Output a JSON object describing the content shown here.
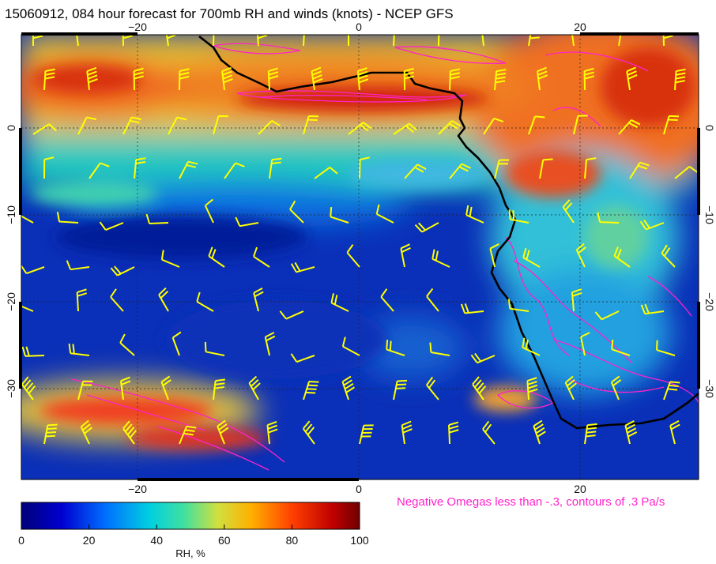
{
  "title": "15060912, 084 hour forecast for 700mb RH and winds (knots) - NCEP GFS",
  "map": {
    "lon_ticks": [
      "−20",
      "0",
      "20"
    ],
    "lat_ticks": [
      "0",
      "−10",
      "−20",
      "−30"
    ],
    "lon_range": [
      -30,
      30
    ],
    "lat_range": [
      -40,
      10
    ],
    "grid": true,
    "coastline_color": "#000000",
    "wind_barb_color": "#ffff00",
    "omega_contour_color": "#ff22cc"
  },
  "note": "Negative Omegas less than -.3, contours of .3 Pa/s",
  "colorbar": {
    "ticks": [
      "0",
      "20",
      "40",
      "60",
      "80",
      "100"
    ],
    "label": "RH, %",
    "colors": [
      "#00007a",
      "#0000d0",
      "#0070ff",
      "#00d0e0",
      "#40e0a0",
      "#d0e040",
      "#ffb000",
      "#ff4000",
      "#c00000",
      "#700000"
    ]
  }
}
